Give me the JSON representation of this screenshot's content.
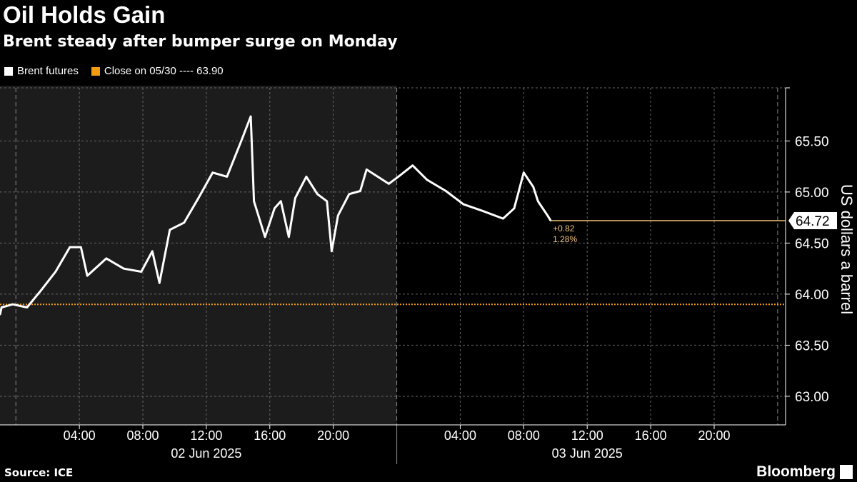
{
  "header": {
    "title": "Oil Holds Gain",
    "subtitle": "Brent steady after bumper surge on Monday"
  },
  "legend": {
    "series_label": "Brent futures",
    "close_label": "Close on 05/30 ---- 63.90"
  },
  "footer": {
    "source": "Source: ICE",
    "brand": "Bloomberg"
  },
  "colors": {
    "series": "#ffffff",
    "close": "#f39c12",
    "annotation": "#f0c27a"
  },
  "chart_data": {
    "type": "line",
    "title": "Oil Holds Gain",
    "ylabel": "US dollars a barrel",
    "xlabel": "",
    "ylim": [
      62.72,
      66.02
    ],
    "xlim_hours_from_02Jun_0000": [
      -1,
      48.5
    ],
    "yticks": [
      "63.00",
      "63.50",
      "64.00",
      "64.50",
      "65.00",
      "65.50"
    ],
    "ytick_values": [
      63.0,
      63.5,
      64.0,
      64.5,
      65.0,
      65.5
    ],
    "xticks": [
      {
        "h": 4,
        "label": "04:00"
      },
      {
        "h": 8,
        "label": "08:00"
      },
      {
        "h": 12,
        "label": "12:00"
      },
      {
        "h": 16,
        "label": "16:00"
      },
      {
        "h": 20,
        "label": "20:00"
      },
      {
        "h": 28,
        "label": "04:00"
      },
      {
        "h": 32,
        "label": "08:00"
      },
      {
        "h": 36,
        "label": "12:00"
      },
      {
        "h": 40,
        "label": "16:00"
      },
      {
        "h": 44,
        "label": "20:00"
      }
    ],
    "date_labels": [
      {
        "h": 12,
        "label": "02 Jun 2025"
      },
      {
        "h": 36,
        "label": "03 Jun 2025"
      }
    ],
    "reference_line": {
      "label": "Close on 05/30",
      "value": 63.9
    },
    "last_value": {
      "label": "64.72",
      "value": 64.72,
      "change": "+0.82",
      "pct": "1.28%"
    },
    "series": [
      {
        "name": "Brent futures",
        "x": [
          -1,
          -0.9,
          -0.2,
          0.7,
          1.6,
          2.5,
          3.4,
          4.1,
          4.5,
          5.7,
          6.8,
          7.9,
          8.6,
          9.05,
          9.7,
          10.6,
          11.5,
          12.4,
          13.3,
          14.2,
          14.8,
          15.0,
          15.7,
          16.3,
          16.7,
          17.2,
          17.6,
          18.3,
          19.0,
          19.6,
          19.9,
          20.3,
          21.0,
          21.7,
          22.1,
          22.8,
          23.5,
          24.1,
          25.0,
          25.9,
          27.1,
          28.2,
          29.5,
          30.7,
          31.4,
          32.0,
          32.6,
          32.9,
          33.5,
          33.7
        ],
        "y": [
          63.8,
          63.87,
          63.9,
          63.87,
          64.04,
          64.22,
          64.46,
          64.46,
          64.18,
          64.35,
          64.25,
          64.22,
          64.42,
          64.11,
          64.63,
          64.7,
          64.94,
          65.19,
          65.15,
          65.5,
          65.74,
          64.91,
          64.56,
          64.84,
          64.91,
          64.56,
          64.94,
          65.15,
          64.98,
          64.91,
          64.42,
          64.77,
          64.98,
          65.01,
          65.22,
          65.15,
          65.08,
          65.15,
          65.26,
          65.12,
          65.01,
          64.88,
          64.81,
          64.74,
          64.84,
          65.19,
          65.05,
          64.91,
          64.77,
          64.72
        ]
      }
    ]
  }
}
